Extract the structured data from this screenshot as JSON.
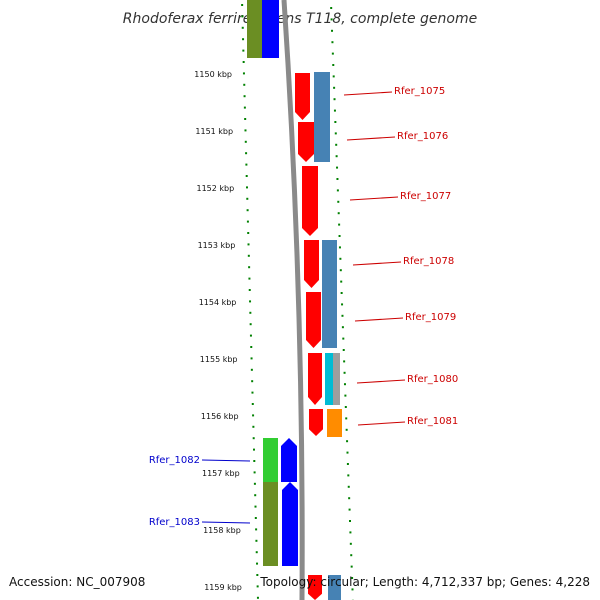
{
  "title": "Rhodoferax ferrireducens T118, complete genome",
  "footer": {
    "accession": "Accession: NC_007908",
    "summary": "Topology: circular; Length: 4,712,337 bp; Genes: 4,228"
  },
  "kbp_ticks": [
    "1150 kbp",
    "1151 kbp",
    "1152 kbp",
    "1153 kbp",
    "1154 kbp",
    "1155 kbp",
    "1156 kbp",
    "1157 kbp",
    "1158 kbp",
    "1159 kbp"
  ],
  "genes_forward": [
    "Rfer_1075",
    "Rfer_1076",
    "Rfer_1077",
    "Rfer_1078",
    "Rfer_1079",
    "Rfer_1080",
    "Rfer_1081"
  ],
  "genes_reverse": [
    "Rfer_1082",
    "Rfer_1083"
  ],
  "colors": {
    "cds": "#ff0000",
    "cog_blue": "#4682b4",
    "cog_cyan": "#00bcd4",
    "cog_orange": "#ff8c00",
    "cog_gray": "#9e9e9e",
    "reverse_cds": "#0000ff",
    "cog_olive": "#6b8e23",
    "cog_green": "#32cd32",
    "backbone": "#808080",
    "tick_green": "#008000",
    "forward_label": "#cc0000",
    "reverse_label": "#0000cc"
  }
}
